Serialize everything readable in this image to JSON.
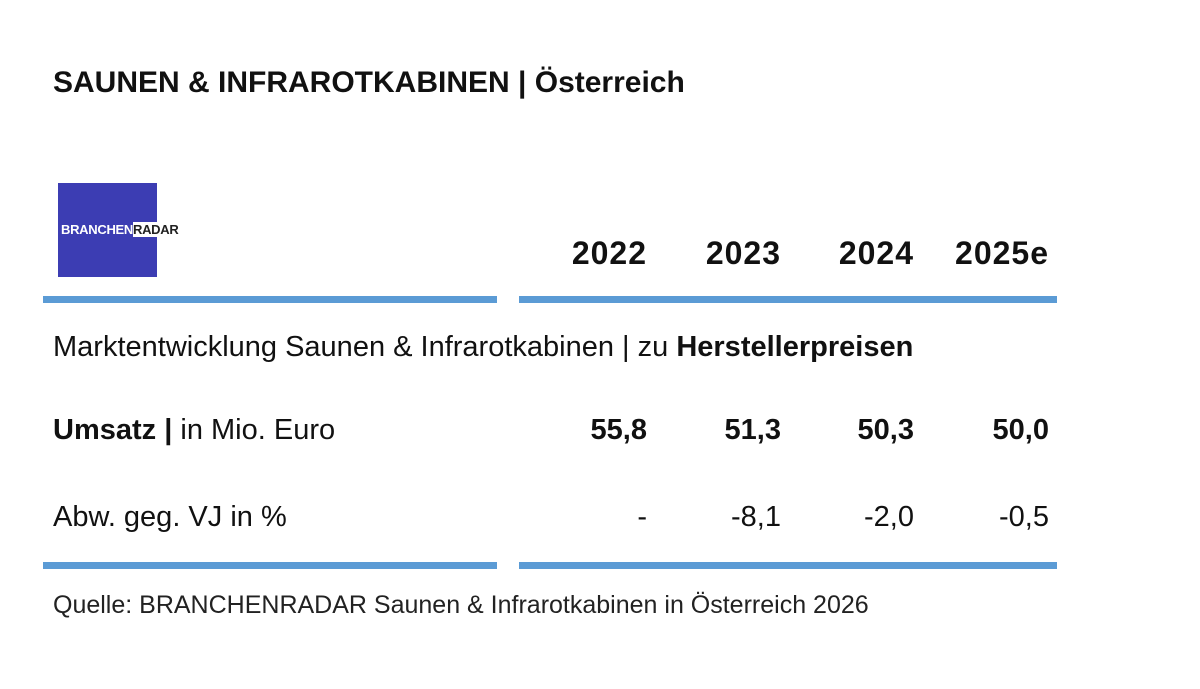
{
  "header": {
    "title": "SAUNEN & INFRAROTKABINEN | Österreich"
  },
  "logo": {
    "part1": "BRANCHEN",
    "part2": "RADAR"
  },
  "table": {
    "columns": [
      "2022",
      "2023",
      "2024",
      "2025e"
    ],
    "subtitle": {
      "text": "Marktentwicklung Saunen & Infrarotkabinen | zu ",
      "emphasis": "Herstellerpreisen"
    },
    "rows": [
      {
        "label": "Umsatz |",
        "unit": "in Mio. Euro",
        "values": [
          "55,8",
          "51,3",
          "50,3",
          "50,0"
        ]
      },
      {
        "label": "Abw. geg. VJ in %",
        "values": [
          "-",
          "-8,1",
          "-2,0",
          "-0,5"
        ]
      }
    ]
  },
  "footer": {
    "source": "Quelle: BRANCHENRADAR Saunen & Infrarotkabinen in Österreich 2026"
  }
}
